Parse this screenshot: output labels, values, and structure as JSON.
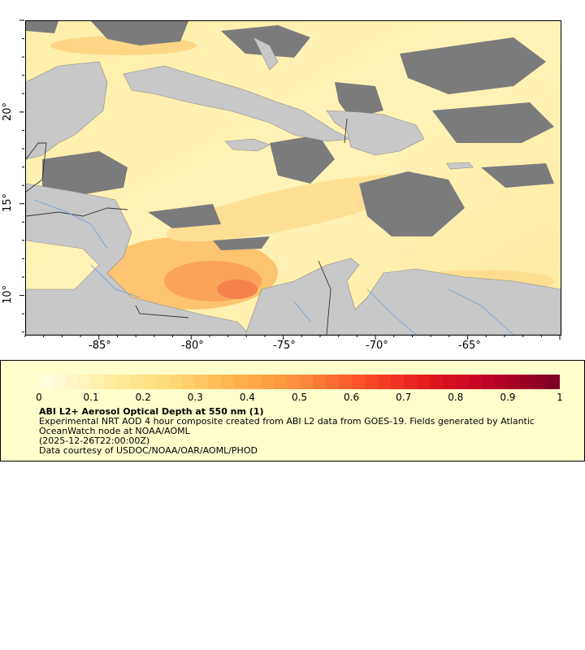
{
  "map": {
    "lon_range": [
      -89,
      -60
    ],
    "lat_range": [
      7.9,
      25
    ],
    "x_ticks": [
      "-85°",
      "-80°",
      "-75°",
      "-70°",
      "-65°"
    ],
    "y_ticks": [
      "20°",
      "15°",
      "10°"
    ],
    "colors": {
      "land": "#c8c8c8",
      "no_data": "#7b7b7b",
      "borders": "#444444",
      "rivers": "#6a9fd6",
      "ocean_low": "#fff2b0"
    }
  },
  "legend": {
    "colorbar_ticks": [
      "0",
      "0.1",
      "0.2",
      "0.3",
      "0.4",
      "0.5",
      "0.6",
      "0.7",
      "0.8",
      "0.9",
      "1"
    ],
    "colormap_stops": [
      "#ffffe0",
      "#ffeda0",
      "#fed976",
      "#feb24c",
      "#fd8d3c",
      "#fc4e2a",
      "#e31a1c",
      "#bd0026",
      "#800026"
    ],
    "title": "ABI L2+ Aerosol Optical Depth at 550 nm (1)",
    "line1": "Experimental NRT AOD 4 hour composite created from ABI L2 data from GOES-19. Fields generated by Atlantic",
    "line2": "OceanWatch node at NOAA/AOML",
    "line3": "(2025-12-26T22:00:00Z)",
    "line4": "Data courtesy of USDOC/NOAA/OAR/AOML/PHOD"
  }
}
